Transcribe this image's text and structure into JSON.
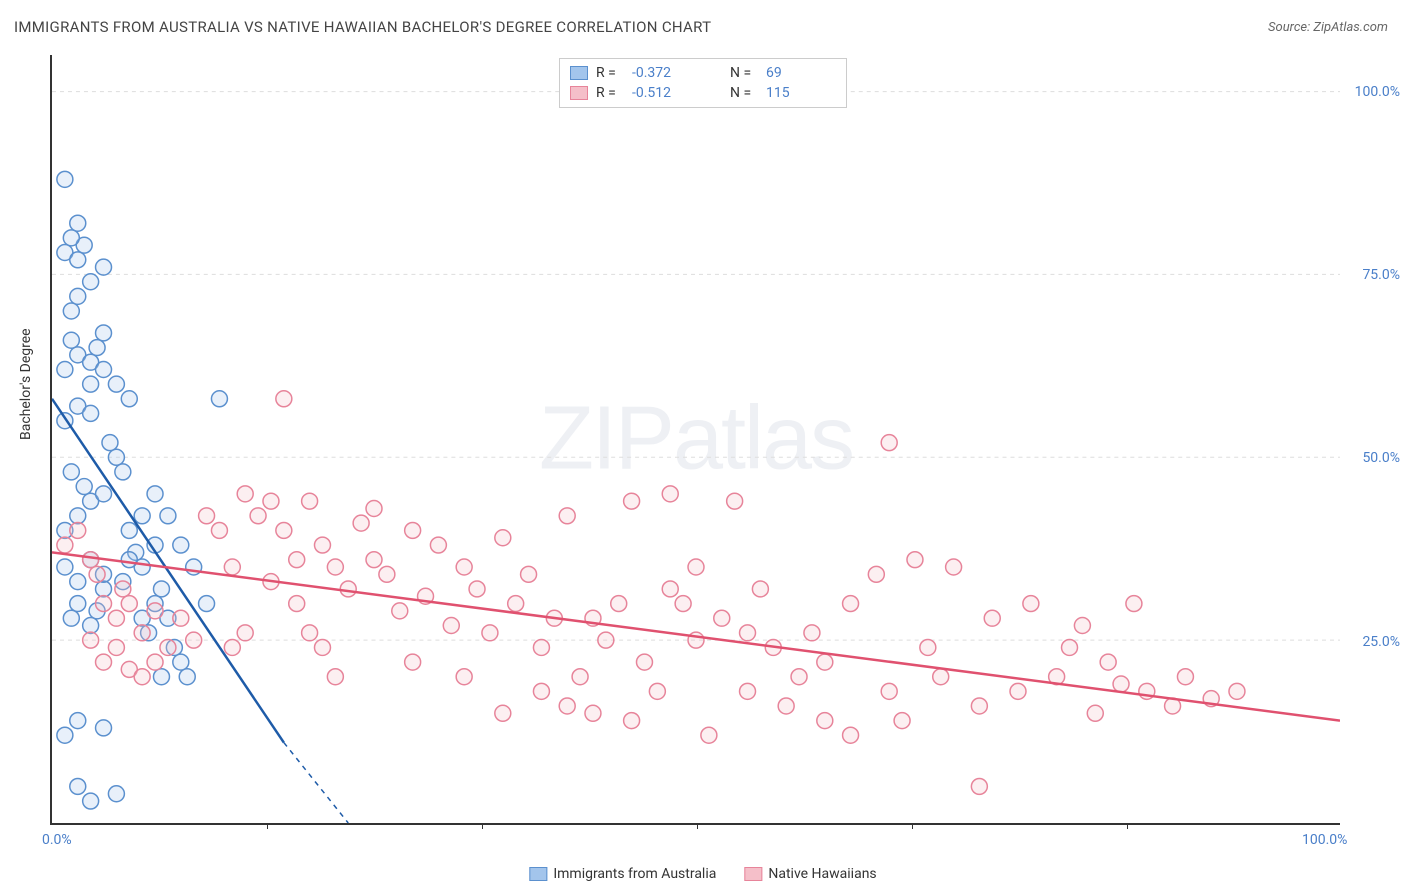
{
  "title": "IMMIGRANTS FROM AUSTRALIA VS NATIVE HAWAIIAN BACHELOR'S DEGREE CORRELATION CHART",
  "source": "Source: ZipAtlas.com",
  "y_axis_label": "Bachelor's Degree",
  "watermark": {
    "part1": "ZIP",
    "part2": "atlas"
  },
  "chart": {
    "type": "scatter",
    "xlim": [
      0,
      100
    ],
    "ylim": [
      0,
      105
    ],
    "x_ticks": [
      0,
      100
    ],
    "x_tick_labels": [
      "0.0%",
      "100.0%"
    ],
    "x_minor_ticks": [
      16.67,
      33.33,
      50,
      66.67,
      83.33
    ],
    "y_ticks": [
      25,
      50,
      75,
      100
    ],
    "y_tick_labels": [
      "25.0%",
      "50.0%",
      "75.0%",
      "100.0%"
    ],
    "grid_color": "#dddddd",
    "background_color": "#ffffff",
    "axis_color": "#333333",
    "marker_radius": 8,
    "marker_stroke_width": 1.5,
    "marker_fill_opacity": 0.25,
    "trend_line_width": 2.5
  },
  "series": [
    {
      "name": "Immigrants from Australia",
      "color_fill": "#a3c5ec",
      "color_stroke": "#5b90ce",
      "trend_color": "#1e5ba8",
      "r": "-0.372",
      "n": "69",
      "trend": {
        "x1": 0,
        "y1": 58,
        "x2": 18,
        "y2": 11,
        "dash_x2": 23,
        "dash_y2": 0
      },
      "points": [
        [
          1,
          12
        ],
        [
          2,
          14
        ],
        [
          4,
          13
        ],
        [
          2,
          5
        ],
        [
          3,
          3
        ],
        [
          5,
          4
        ],
        [
          1.5,
          28
        ],
        [
          2,
          30
        ],
        [
          3,
          27
        ],
        [
          3.5,
          29
        ],
        [
          4,
          32
        ],
        [
          2,
          33
        ],
        [
          1,
          35
        ],
        [
          3,
          36
        ],
        [
          4,
          34
        ],
        [
          1,
          40
        ],
        [
          2,
          42
        ],
        [
          3,
          44
        ],
        [
          1.5,
          48
        ],
        [
          2.5,
          46
        ],
        [
          4,
          45
        ],
        [
          1,
          55
        ],
        [
          2,
          57
        ],
        [
          3,
          56
        ],
        [
          1,
          62
        ],
        [
          2,
          64
        ],
        [
          3,
          63
        ],
        [
          3.5,
          65
        ],
        [
          4,
          67
        ],
        [
          1.5,
          70
        ],
        [
          2,
          72
        ],
        [
          3,
          74
        ],
        [
          4,
          76
        ],
        [
          1,
          78
        ],
        [
          2,
          77
        ],
        [
          2.5,
          79
        ],
        [
          1,
          88
        ],
        [
          2,
          82
        ],
        [
          1.5,
          80
        ],
        [
          3,
          60
        ],
        [
          5,
          50
        ],
        [
          6,
          40
        ],
        [
          6.5,
          37
        ],
        [
          7,
          35
        ],
        [
          8,
          30
        ],
        [
          8.5,
          32
        ],
        [
          9,
          28
        ],
        [
          9.5,
          24
        ],
        [
          10,
          22
        ],
        [
          10.5,
          20
        ],
        [
          11,
          35
        ],
        [
          12,
          30
        ],
        [
          13,
          58
        ],
        [
          8,
          45
        ],
        [
          9,
          42
        ],
        [
          10,
          38
        ],
        [
          7,
          28
        ],
        [
          8.5,
          20
        ],
        [
          6,
          58
        ],
        [
          5,
          60
        ],
        [
          4.5,
          52
        ],
        [
          5.5,
          48
        ],
        [
          7,
          42
        ],
        [
          6,
          36
        ],
        [
          7.5,
          26
        ],
        [
          8,
          38
        ],
        [
          5.5,
          33
        ],
        [
          4,
          62
        ],
        [
          1.5,
          66
        ]
      ]
    },
    {
      "name": "Native Hawaiians",
      "color_fill": "#f5bfc9",
      "color_stroke": "#e7849a",
      "trend_color": "#e0516f",
      "r": "-0.512",
      "n": "115",
      "trend": {
        "x1": 0,
        "y1": 37,
        "x2": 100,
        "y2": 14
      },
      "points": [
        [
          1,
          38
        ],
        [
          2,
          40
        ],
        [
          3,
          36
        ],
        [
          3.5,
          34
        ],
        [
          4,
          30
        ],
        [
          5,
          28
        ],
        [
          5.5,
          32
        ],
        [
          6,
          30
        ],
        [
          7,
          26
        ],
        [
          8,
          29
        ],
        [
          3,
          25
        ],
        [
          4,
          22
        ],
        [
          5,
          24
        ],
        [
          6,
          21
        ],
        [
          7,
          20
        ],
        [
          8,
          22
        ],
        [
          9,
          24
        ],
        [
          10,
          28
        ],
        [
          11,
          25
        ],
        [
          12,
          42
        ],
        [
          13,
          40
        ],
        [
          14,
          35
        ],
        [
          15,
          45
        ],
        [
          16,
          42
        ],
        [
          17,
          33
        ],
        [
          18,
          40
        ],
        [
          19,
          30
        ],
        [
          20,
          44
        ],
        [
          21,
          38
        ],
        [
          22,
          35
        ],
        [
          23,
          32
        ],
        [
          24,
          41
        ],
        [
          25,
          36
        ],
        [
          26,
          34
        ],
        [
          27,
          29
        ],
        [
          28,
          40
        ],
        [
          29,
          31
        ],
        [
          30,
          38
        ],
        [
          31,
          27
        ],
        [
          32,
          35
        ],
        [
          33,
          32
        ],
        [
          34,
          26
        ],
        [
          35,
          39
        ],
        [
          36,
          30
        ],
        [
          37,
          34
        ],
        [
          38,
          24
        ],
        [
          39,
          28
        ],
        [
          40,
          42
        ],
        [
          41,
          20
        ],
        [
          42,
          15
        ],
        [
          43,
          25
        ],
        [
          44,
          30
        ],
        [
          45,
          14
        ],
        [
          46,
          22
        ],
        [
          47,
          18
        ],
        [
          48,
          45
        ],
        [
          49,
          30
        ],
        [
          50,
          35
        ],
        [
          51,
          12
        ],
        [
          52,
          28
        ],
        [
          53,
          44
        ],
        [
          54,
          18
        ],
        [
          55,
          32
        ],
        [
          56,
          24
        ],
        [
          57,
          16
        ],
        [
          58,
          20
        ],
        [
          59,
          26
        ],
        [
          60,
          22
        ],
        [
          62,
          30
        ],
        [
          64,
          34
        ],
        [
          65,
          18
        ],
        [
          66,
          14
        ],
        [
          67,
          36
        ],
        [
          69,
          20
        ],
        [
          70,
          35
        ],
        [
          72,
          16
        ],
        [
          73,
          28
        ],
        [
          75,
          18
        ],
        [
          76,
          30
        ],
        [
          78,
          20
        ],
        [
          79,
          24
        ],
        [
          80,
          27
        ],
        [
          81,
          15
        ],
        [
          82,
          22
        ],
        [
          83,
          19
        ],
        [
          85,
          18
        ],
        [
          87,
          16
        ],
        [
          88,
          20
        ],
        [
          90,
          17
        ],
        [
          92,
          18
        ],
        [
          65,
          52
        ],
        [
          72,
          5
        ],
        [
          25,
          43
        ],
        [
          18,
          58
        ],
        [
          40,
          16
        ],
        [
          45,
          44
        ],
        [
          50,
          25
        ],
        [
          35,
          15
        ],
        [
          42,
          28
        ],
        [
          48,
          32
        ],
        [
          54,
          26
        ],
        [
          60,
          14
        ],
        [
          62,
          12
        ],
        [
          68,
          24
        ],
        [
          84,
          30
        ],
        [
          38,
          18
        ],
        [
          28,
          22
        ],
        [
          32,
          20
        ],
        [
          15,
          26
        ],
        [
          17,
          44
        ],
        [
          20,
          26
        ],
        [
          22,
          20
        ],
        [
          19,
          36
        ],
        [
          21,
          24
        ],
        [
          14,
          24
        ]
      ]
    }
  ],
  "legend_top": {
    "r_label": "R =",
    "n_label": "N ="
  },
  "legend_bottom": [
    {
      "label": "Immigrants from Australia",
      "fill": "#a3c5ec",
      "stroke": "#5b90ce"
    },
    {
      "label": "Native Hawaiians",
      "fill": "#f5bfc9",
      "stroke": "#e7849a"
    }
  ]
}
